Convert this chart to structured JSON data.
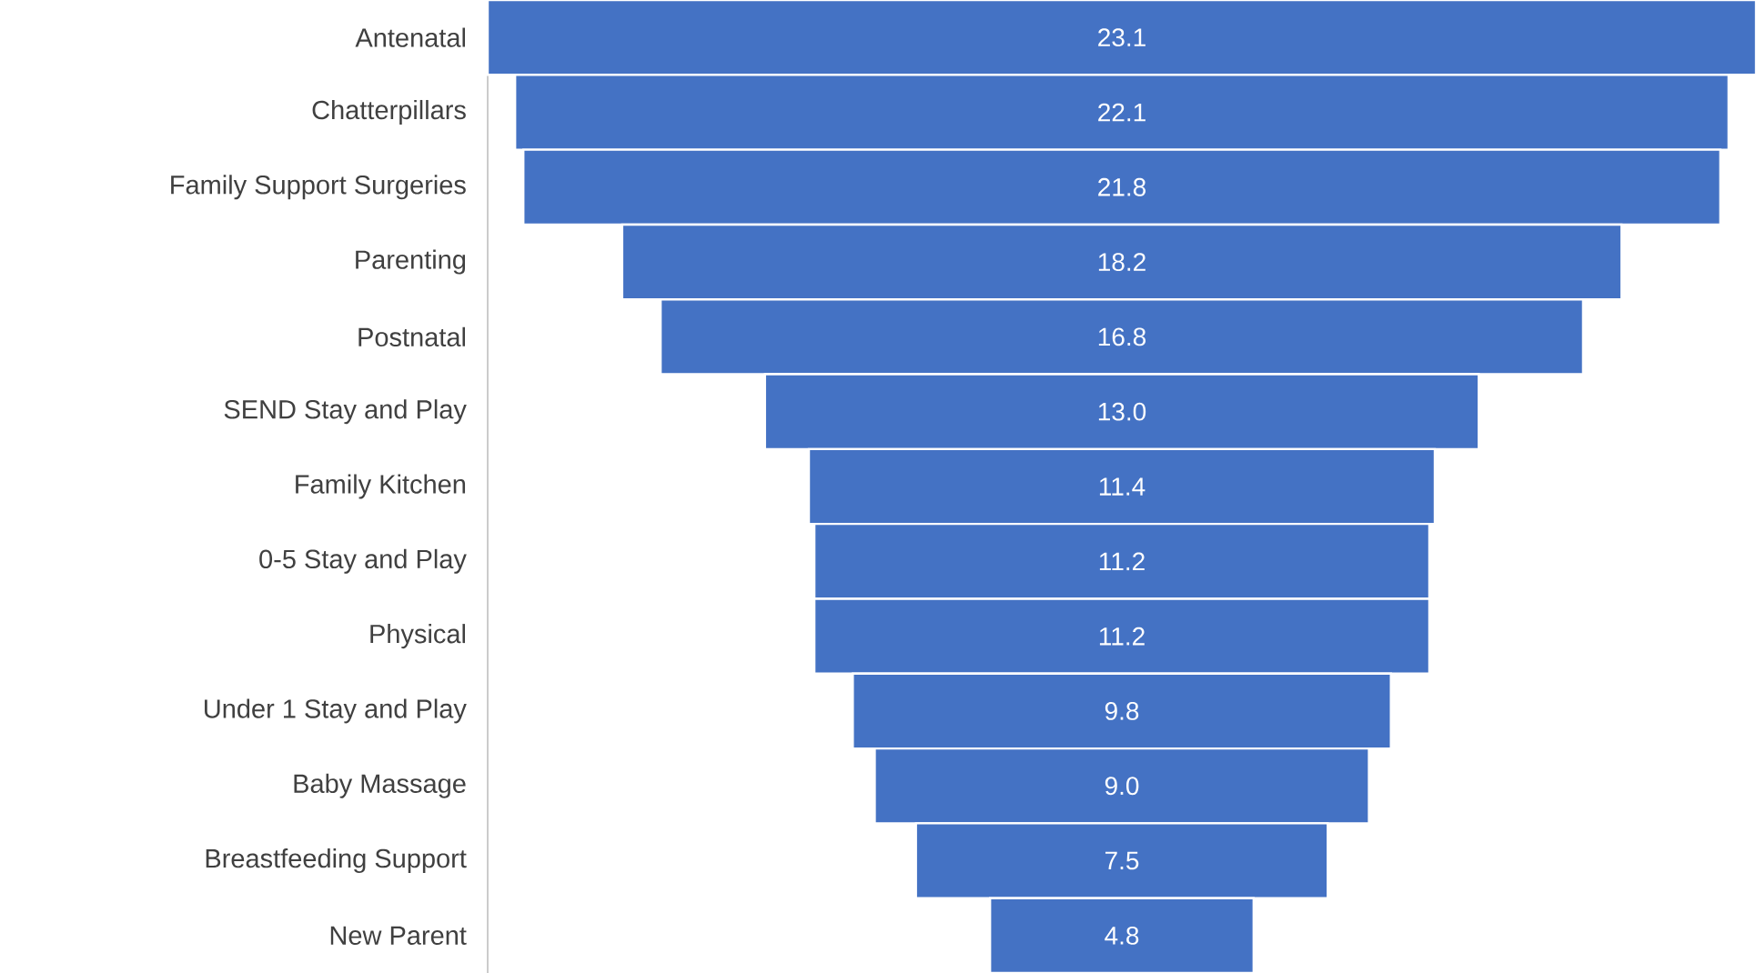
{
  "chart_data": {
    "type": "other",
    "categories": [
      "Antenatal",
      "Chatterpillars",
      "Family Support Surgeries",
      "Parenting",
      "Postnatal",
      "SEND Stay and Play",
      "Family Kitchen",
      "0-5 Stay and Play",
      "Physical",
      "Under 1 Stay and Play",
      "Baby Massage",
      "Breastfeeding Support",
      "New Parent"
    ],
    "values": [
      23.1,
      22.1,
      21.8,
      18.2,
      16.8,
      13.0,
      11.4,
      11.2,
      11.2,
      9.8,
      9.0,
      7.5,
      4.8
    ],
    "color": "#4472c4",
    "value_labels": [
      "23.1",
      "22.1",
      "21.8",
      "18.2",
      "16.8",
      "13.0",
      "11.4",
      "11.2",
      "11.2",
      "9.8",
      "9.0",
      "7.5",
      "4.8"
    ]
  }
}
